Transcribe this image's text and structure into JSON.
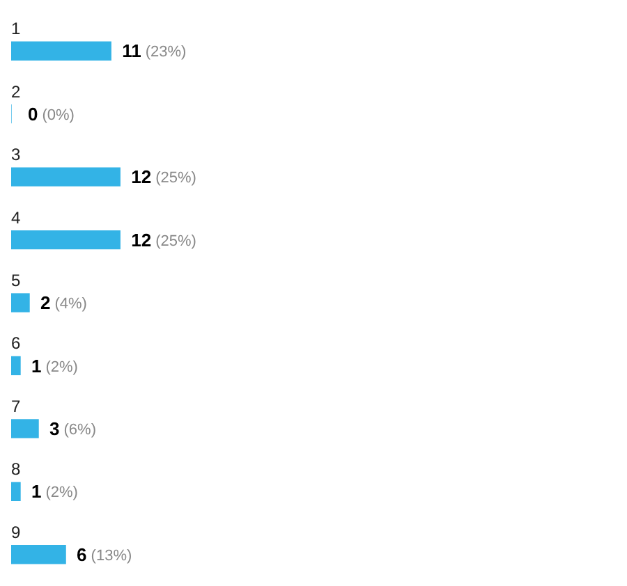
{
  "chart_data": {
    "type": "bar",
    "orientation": "horizontal",
    "categories": [
      "1",
      "2",
      "3",
      "4",
      "5",
      "6",
      "7",
      "8",
      "9"
    ],
    "values": [
      11,
      0,
      12,
      12,
      2,
      1,
      3,
      1,
      6
    ],
    "value_labels": [
      "11 (23%)",
      "0 (0%)",
      "12 (25%)",
      "12 (25%)",
      "2 (4%)",
      "1 (2%)",
      "3 (6%)",
      "1 (2%)",
      "6 (13%)"
    ],
    "color": "#33b3e6",
    "legend": false,
    "tick_labels": false
  }
}
